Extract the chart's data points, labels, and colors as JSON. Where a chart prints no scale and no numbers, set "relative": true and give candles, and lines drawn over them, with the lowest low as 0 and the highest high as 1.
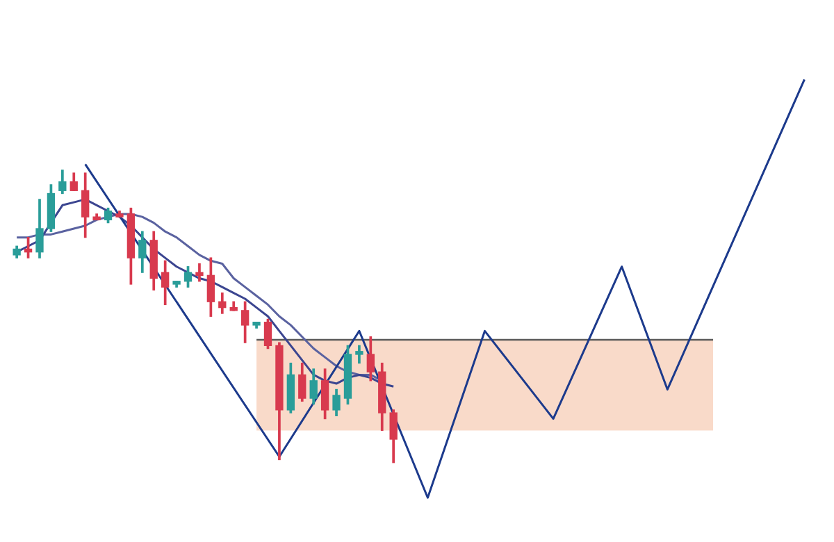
{
  "chart_data": {
    "type": "candlestick",
    "relative": true,
    "categories": [
      null,
      null,
      null,
      null,
      null,
      null,
      null,
      null,
      null,
      null,
      null,
      null,
      null,
      null,
      null,
      null,
      null,
      null,
      null,
      null,
      null,
      null,
      null,
      null,
      null,
      null,
      null,
      null,
      null,
      null,
      null,
      null,
      null,
      null,
      null,
      null,
      null,
      null,
      null,
      null,
      null,
      null,
      null,
      null,
      null,
      null,
      null,
      null,
      null,
      null,
      null,
      null,
      null,
      null,
      null,
      null,
      null,
      null,
      null,
      null,
      null,
      null,
      null,
      null,
      null,
      null,
      null,
      null,
      null,
      null
    ],
    "ohlc": [
      [
        0.71,
        0.74,
        0.7,
        0.73
      ],
      [
        0.73,
        0.77,
        0.7,
        0.72
      ],
      [
        0.72,
        0.9,
        0.7,
        0.8
      ],
      [
        0.8,
        0.95,
        0.79,
        0.92
      ],
      [
        0.93,
        1.0,
        0.92,
        0.96
      ],
      [
        0.96,
        0.99,
        0.93,
        0.93
      ],
      [
        0.93,
        0.99,
        0.77,
        0.84
      ],
      [
        0.84,
        0.85,
        0.83,
        0.83
      ],
      [
        0.83,
        0.87,
        0.82,
        0.86
      ],
      [
        0.85,
        0.86,
        0.84,
        0.84
      ],
      [
        0.85,
        0.87,
        0.61,
        0.7
      ],
      [
        0.7,
        0.79,
        0.65,
        0.76
      ],
      [
        0.76,
        0.79,
        0.59,
        0.63
      ],
      [
        0.65,
        0.69,
        0.54,
        0.6
      ],
      [
        0.61,
        0.62,
        0.6,
        0.62
      ],
      [
        0.62,
        0.67,
        0.6,
        0.65
      ],
      [
        0.65,
        0.68,
        0.62,
        0.64
      ],
      [
        0.64,
        0.7,
        0.5,
        0.55
      ],
      [
        0.55,
        0.58,
        0.51,
        0.53
      ],
      [
        0.53,
        0.55,
        0.52,
        0.52
      ],
      [
        0.52,
        0.55,
        0.41,
        0.47
      ],
      [
        0.47,
        0.48,
        0.46,
        0.48
      ],
      [
        0.48,
        0.49,
        0.39,
        0.4
      ],
      [
        0.4,
        0.41,
        0.01,
        0.18
      ],
      [
        0.18,
        0.34,
        0.17,
        0.3
      ],
      [
        0.3,
        0.34,
        0.21,
        0.22
      ],
      [
        0.22,
        0.32,
        0.2,
        0.28
      ],
      [
        0.28,
        0.32,
        0.15,
        0.18
      ],
      [
        0.18,
        0.25,
        0.16,
        0.23
      ],
      [
        0.22,
        0.4,
        0.2,
        0.37
      ],
      [
        0.37,
        0.4,
        0.34,
        0.38
      ],
      [
        0.37,
        0.43,
        0.28,
        0.31
      ],
      [
        0.31,
        0.34,
        0.11,
        0.17
      ],
      [
        0.17,
        0.18,
        0.0,
        0.08
      ],
      null,
      null,
      null,
      null,
      null,
      null,
      null,
      null,
      null,
      null,
      null,
      null,
      null,
      null,
      null,
      null,
      null,
      null,
      null,
      null,
      null,
      null,
      null,
      null,
      null,
      null,
      null,
      null,
      null,
      null,
      null,
      null,
      null,
      null,
      null,
      null
    ],
    "colors": [
      "#2a9d99",
      "#d83a4e",
      "#2a9d99",
      "#2a9d99",
      "#2a9d99",
      "#d83a4e",
      "#d83a4e",
      "#d83a4e",
      "#2a9d99",
      "#d83a4e",
      "#d83a4e",
      "#2a9d99",
      "#d83a4e",
      "#d83a4e",
      "#2a9d99",
      "#2a9d99",
      "#d83a4e",
      "#d83a4e",
      "#d83a4e",
      "#d83a4e",
      "#d83a4e",
      "#2a9d99",
      "#d83a4e",
      "#d83a4e",
      "#2a9d99",
      "#d83a4e",
      "#2a9d99",
      "#d83a4e",
      "#2a9d99",
      "#2a9d99",
      "#2a9d99",
      "#d83a4e",
      "#d83a4e",
      "#d83a4e",
      null,
      null,
      null,
      null,
      null,
      null,
      null,
      null,
      null,
      null,
      null,
      null,
      null,
      null,
      null,
      null,
      null,
      null,
      null,
      null,
      null,
      null,
      null,
      null,
      null,
      null,
      null,
      null,
      null,
      null,
      null,
      null,
      null,
      null,
      null,
      null
    ],
    "series": [
      {
        "type": "line",
        "color": "#5a5a5a",
        "upper": [
          null,
          null,
          null,
          null,
          null,
          null,
          null,
          null,
          null,
          null,
          null,
          null,
          null,
          null,
          null,
          null,
          null,
          null,
          null,
          null,
          null,
          0.42,
          null,
          null,
          null,
          null,
          null,
          null,
          null,
          null,
          null,
          null,
          null,
          null,
          null,
          null,
          null,
          null,
          null,
          null,
          null,
          null,
          null,
          null,
          null,
          null,
          null,
          null,
          null,
          null,
          null,
          null,
          null,
          null,
          null,
          null,
          null,
          null,
          null,
          null,
          null,
          0.42,
          null,
          null,
          null,
          null,
          null,
          null,
          null,
          null
        ],
        "values": [
          null,
          null,
          null,
          null,
          null,
          null,
          null,
          null,
          null,
          null,
          null,
          null,
          null,
          null,
          null,
          null,
          null,
          null,
          null,
          null,
          null,
          0.42,
          null,
          null,
          null,
          null,
          null,
          null,
          null,
          null,
          null,
          null,
          null,
          null,
          null,
          null,
          null,
          null,
          null,
          null,
          null,
          null,
          null,
          null,
          null,
          null,
          null,
          null,
          null,
          null,
          null,
          null,
          null,
          null,
          null,
          null,
          null,
          null,
          null,
          null,
          null,
          0.42,
          null,
          null,
          null,
          null,
          null,
          null,
          null,
          null
        ],
        "lower": [
          null,
          null,
          null,
          null,
          null,
          null,
          null,
          null,
          null,
          null,
          null,
          null,
          null,
          null,
          null,
          null,
          null,
          null,
          null,
          null,
          null,
          0.11,
          null,
          null,
          null,
          null,
          null,
          null,
          null,
          null,
          null,
          null,
          null,
          null,
          null,
          null,
          null,
          null,
          null,
          null,
          null,
          null,
          null,
          null,
          null,
          null,
          null,
          null,
          null,
          null,
          null,
          null,
          null,
          null,
          null,
          null,
          null,
          null,
          null,
          null,
          null,
          0.11,
          null,
          null,
          null,
          null,
          null,
          null,
          null,
          null
        ]
      },
      {
        "type": "line",
        "color": "#1c3a8c",
        "values": [
          null,
          null,
          null,
          null,
          null,
          null,
          1.02,
          null,
          null,
          null,
          null,
          null,
          null,
          null,
          null,
          null,
          null,
          null,
          null,
          null,
          null,
          null,
          null,
          0.02,
          null,
          null,
          null,
          null,
          null,
          null,
          0.45,
          null,
          null,
          null,
          null,
          null,
          -0.12,
          null,
          null,
          null,
          null,
          0.45,
          null,
          null,
          null,
          null,
          null,
          0.15,
          null,
          null,
          null,
          null,
          null,
          0.67,
          null,
          null,
          null,
          0.25,
          null,
          null,
          null,
          null,
          null,
          null,
          null,
          null,
          null,
          null,
          null,
          1.31
        ]
      },
      {
        "type": "line",
        "color": "#3b4590",
        "values": [
          0.72,
          0.74,
          0.76,
          0.82,
          0.88,
          0.89,
          0.9,
          0.88,
          0.86,
          0.84,
          0.81,
          0.77,
          0.73,
          0.7,
          0.67,
          0.65,
          0.63,
          0.62,
          0.6,
          0.58,
          0.56,
          0.53,
          0.5,
          0.45,
          0.4,
          0.35,
          0.3,
          0.28,
          0.27,
          0.29,
          0.3,
          0.29,
          0.27,
          0.26,
          null,
          null,
          null,
          null,
          null,
          null,
          null,
          null,
          null,
          null,
          null,
          null,
          null,
          null,
          null,
          null,
          null,
          null,
          null,
          null,
          null,
          null,
          null,
          null,
          null,
          null,
          null,
          null,
          null,
          null,
          null,
          null,
          null,
          null,
          null,
          null
        ]
      },
      {
        "type": "line",
        "color": "#5a62a0",
        "values": [
          0.77,
          0.77,
          0.78,
          0.78,
          0.79,
          0.8,
          0.81,
          0.83,
          0.84,
          0.85,
          0.85,
          0.84,
          0.82,
          0.79,
          0.77,
          0.74,
          0.71,
          0.69,
          0.68,
          0.63,
          0.6,
          0.57,
          0.54,
          0.5,
          0.47,
          0.43,
          0.39,
          0.36,
          0.33,
          0.31,
          0.3,
          0.3,
          0.28,
          null,
          null,
          null,
          null,
          null,
          null,
          null,
          null,
          null,
          null,
          null,
          null,
          null,
          null,
          null,
          null,
          null,
          null,
          null,
          null,
          null,
          null,
          null,
          null,
          null,
          null,
          null,
          null,
          null,
          null,
          null,
          null,
          null,
          null,
          null,
          null,
          null
        ]
      }
    ]
  }
}
